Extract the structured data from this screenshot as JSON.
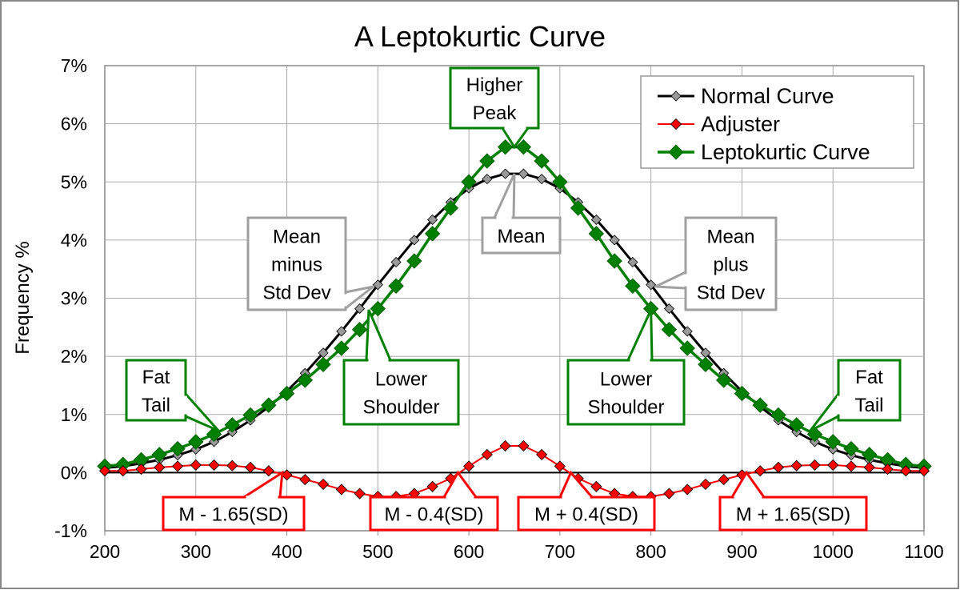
{
  "chart_data": {
    "type": "line",
    "title": "A Leptokurtic Curve",
    "xlabel": "",
    "ylabel": "Frequency %",
    "xlim": [
      200,
      1100
    ],
    "ylim": [
      -1,
      7
    ],
    "x_ticks": [
      "200",
      "300",
      "400",
      "500",
      "600",
      "700",
      "800",
      "900",
      "1000",
      "1100"
    ],
    "y_ticks": [
      "-1%",
      "0%",
      "1%",
      "2%",
      "3%",
      "4%",
      "5%",
      "6%",
      "7%"
    ],
    "grid": true,
    "legend_position": "top-right",
    "x": [
      200,
      220,
      240,
      260,
      280,
      300,
      320,
      340,
      360,
      380,
      400,
      420,
      440,
      460,
      480,
      500,
      520,
      540,
      560,
      580,
      600,
      620,
      640,
      660,
      680,
      700,
      720,
      740,
      760,
      780,
      800,
      820,
      840,
      860,
      880,
      900,
      920,
      940,
      960,
      980,
      1000,
      1020,
      1040,
      1060,
      1080,
      1100
    ],
    "series": [
      {
        "name": "Normal Curve",
        "color": "#000000",
        "marker_color": "#999999",
        "values": [
          0.08,
          0.11,
          0.16,
          0.22,
          0.3,
          0.4,
          0.53,
          0.7,
          0.9,
          1.13,
          1.4,
          1.71,
          2.06,
          2.43,
          2.82,
          3.23,
          3.62,
          4.0,
          4.35,
          4.65,
          4.89,
          5.05,
          5.14,
          5.14,
          5.05,
          4.89,
          4.65,
          4.35,
          4.0,
          3.62,
          3.23,
          2.82,
          2.43,
          2.06,
          1.71,
          1.4,
          1.13,
          0.9,
          0.7,
          0.53,
          0.4,
          0.3,
          0.22,
          0.16,
          0.11,
          0.08
        ]
      },
      {
        "name": "Adjuster",
        "color": "#ff0000",
        "marker_color": "#ff0000",
        "values": [
          0.03,
          0.03,
          0.06,
          0.09,
          0.11,
          0.13,
          0.13,
          0.12,
          0.09,
          0.03,
          -0.04,
          -0.12,
          -0.2,
          -0.29,
          -0.36,
          -0.41,
          -0.41,
          -0.36,
          -0.24,
          -0.1,
          0.11,
          0.31,
          0.46,
          0.46,
          0.31,
          0.11,
          -0.1,
          -0.24,
          -0.36,
          -0.41,
          -0.41,
          -0.36,
          -0.29,
          -0.2,
          -0.12,
          -0.04,
          0.03,
          0.09,
          0.12,
          0.13,
          0.13,
          0.11,
          0.09,
          0.06,
          0.03,
          0.03
        ]
      },
      {
        "name": "Leptokurtic Curve",
        "color": "#008000",
        "marker_color": "#008000",
        "values": [
          0.11,
          0.14,
          0.22,
          0.31,
          0.41,
          0.53,
          0.66,
          0.82,
          0.99,
          1.16,
          1.36,
          1.59,
          1.86,
          2.14,
          2.46,
          2.82,
          3.21,
          3.64,
          4.11,
          4.55,
          5.0,
          5.36,
          5.6,
          5.6,
          5.36,
          5.0,
          4.55,
          4.11,
          3.64,
          3.21,
          2.82,
          2.46,
          2.14,
          1.86,
          1.59,
          1.36,
          1.16,
          0.99,
          0.82,
          0.66,
          0.53,
          0.41,
          0.31,
          0.22,
          0.14,
          0.11
        ]
      }
    ],
    "annotations": [
      {
        "id": "higher-peak",
        "lines": [
          "Higher",
          "Peak"
        ],
        "color": "#008000",
        "x": 650,
        "y": 5.6
      },
      {
        "id": "mean",
        "lines": [
          "Mean"
        ],
        "color": "#a0a0a0",
        "x": 650,
        "y": 5.14
      },
      {
        "id": "mean-minus-sd",
        "lines": [
          "Mean",
          "minus",
          "Std Dev"
        ],
        "color": "#a0a0a0",
        "x": 495,
        "y": 3.2
      },
      {
        "id": "mean-plus-sd",
        "lines": [
          "Mean",
          "plus",
          "Std Dev"
        ],
        "color": "#a0a0a0",
        "x": 805,
        "y": 3.2
      },
      {
        "id": "lower-shoulder-left",
        "lines": [
          "Lower",
          "Shoulder"
        ],
        "color": "#008000",
        "x": 490,
        "y": 2.8
      },
      {
        "id": "lower-shoulder-right",
        "lines": [
          "Lower",
          "Shoulder"
        ],
        "color": "#008000",
        "x": 800,
        "y": 2.8
      },
      {
        "id": "fat-tail-left",
        "lines": [
          "Fat",
          "Tail"
        ],
        "color": "#008000",
        "x": 325,
        "y": 0.72
      },
      {
        "id": "fat-tail-right",
        "lines": [
          "Fat",
          "Tail"
        ],
        "color": "#008000",
        "x": 975,
        "y": 0.72
      },
      {
        "id": "m-minus-1.65sd",
        "lines": [
          "M - 1.65(SD)"
        ],
        "color": "#ff0000",
        "x": 395,
        "y": 0
      },
      {
        "id": "m-minus-0.4sd",
        "lines": [
          "M - 0.4(SD)"
        ],
        "color": "#ff0000",
        "x": 588,
        "y": 0
      },
      {
        "id": "m-plus-0.4sd",
        "lines": [
          "M + 0.4(SD)"
        ],
        "color": "#ff0000",
        "x": 712,
        "y": 0
      },
      {
        "id": "m-plus-1.65sd",
        "lines": [
          "M + 1.65(SD)"
        ],
        "color": "#ff0000",
        "x": 905,
        "y": 0
      }
    ]
  }
}
